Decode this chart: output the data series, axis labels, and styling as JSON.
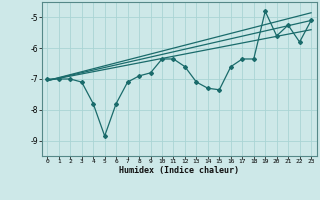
{
  "xlabel": "Humidex (Indice chaleur)",
  "ylabel": "",
  "bg_color": "#cde8e8",
  "line_color": "#1a6b6b",
  "grid_color": "#aad4d4",
  "xlim": [
    -0.5,
    23.5
  ],
  "ylim": [
    -9.5,
    -4.5
  ],
  "x_ticks": [
    0,
    1,
    2,
    3,
    4,
    5,
    6,
    7,
    8,
    9,
    10,
    11,
    12,
    13,
    14,
    15,
    16,
    17,
    18,
    19,
    20,
    21,
    22,
    23
  ],
  "y_ticks": [
    -9,
    -8,
    -7,
    -6,
    -5
  ],
  "jagged_x": [
    0,
    1,
    2,
    3,
    4,
    5,
    6,
    7,
    8,
    9,
    10,
    11,
    12,
    13,
    14,
    15,
    16,
    17,
    18,
    19,
    20,
    21,
    22,
    23
  ],
  "jagged_y": [
    -7.0,
    -7.0,
    -7.0,
    -7.1,
    -7.8,
    -8.85,
    -7.8,
    -7.1,
    -6.9,
    -6.8,
    -6.35,
    -6.35,
    -6.6,
    -7.1,
    -7.3,
    -7.35,
    -6.6,
    -6.35,
    -6.35,
    -4.8,
    -5.6,
    -5.25,
    -5.8,
    -5.1
  ],
  "line1_x": [
    0,
    23
  ],
  "line1_y": [
    -7.05,
    -4.85
  ],
  "line2_x": [
    0,
    23
  ],
  "line2_y": [
    -7.05,
    -5.1
  ],
  "line3_x": [
    0,
    23
  ],
  "line3_y": [
    -7.05,
    -5.4
  ]
}
